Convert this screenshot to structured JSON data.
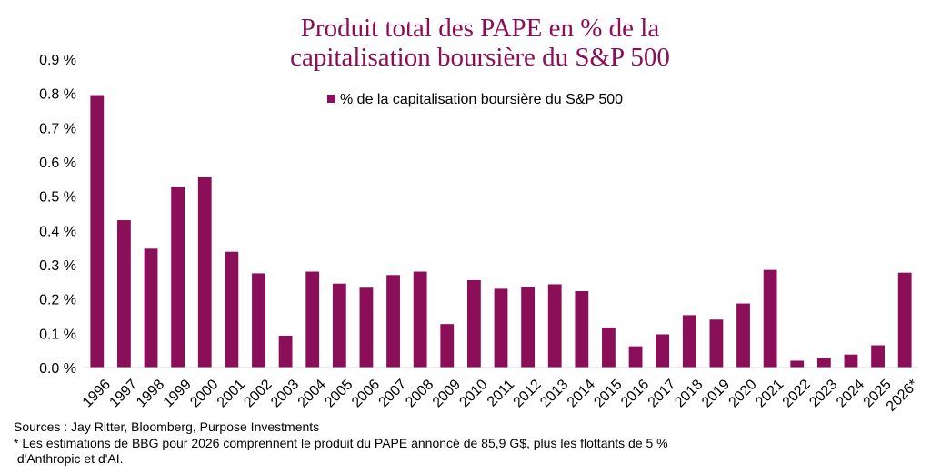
{
  "chart_data": {
    "type": "bar",
    "title_lines": [
      "Produit total des PAPE en % de la",
      "capitalisation boursière du S&P 500"
    ],
    "legend_label": "% de la capitalisation boursière du S&P 500",
    "legend_placement": "top-center",
    "series_color": "#8b0f58",
    "title_color": "#8b0f58",
    "grid": false,
    "ylim": [
      0,
      0.9
    ],
    "y_ticks": [
      0.0,
      0.1,
      0.2,
      0.3,
      0.4,
      0.5,
      0.6,
      0.7,
      0.8,
      0.9
    ],
    "y_tick_labels": [
      "0.0 %",
      "0.1 %",
      "0.2 %",
      "0.3 %",
      "0.4 %",
      "0.5 %",
      "0.6 %",
      "0.7 %",
      "0.8 %",
      "0.9 %"
    ],
    "categories": [
      "1996",
      "1997",
      "1998",
      "1999",
      "2000",
      "2001",
      "2002",
      "2003",
      "2004",
      "2005",
      "2006",
      "2007",
      "2008",
      "2009",
      "2010",
      "2011",
      "2012",
      "2013",
      "2014",
      "2015",
      "2016",
      "2017",
      "2018",
      "2019",
      "2020",
      "2021",
      "2022",
      "2023",
      "2024",
      "2025",
      "2026*"
    ],
    "values": [
      0.795,
      0.43,
      0.347,
      0.528,
      0.555,
      0.338,
      0.275,
      0.093,
      0.28,
      0.245,
      0.233,
      0.27,
      0.28,
      0.127,
      0.255,
      0.23,
      0.235,
      0.243,
      0.223,
      0.117,
      0.062,
      0.097,
      0.153,
      0.14,
      0.187,
      0.285,
      0.02,
      0.028,
      0.038,
      0.065,
      0.277
    ]
  },
  "footnotes": {
    "sources": "Sources : Jay Ritter, Bloomberg, Purpose Investments",
    "note_line1": "* Les estimations de BBG pour 2026 comprennent le produit du PAPE annoncé de 85,9 G$, plus les flottants de 5 %",
    "note_line2": " d'Anthropic et d'AI."
  }
}
